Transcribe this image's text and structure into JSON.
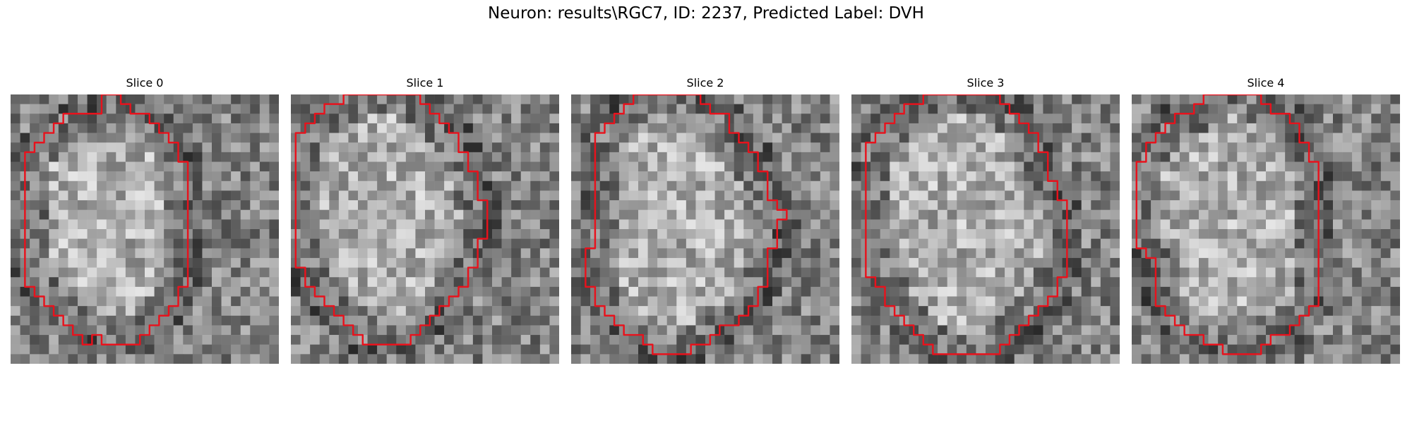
{
  "figure": {
    "title": "Neuron: results\\RGC7, ID: 2237, Predicted Label: DVH",
    "contour_color": "#e8121c",
    "colormap": "gray"
  },
  "panels": [
    {
      "title": "Slice 0",
      "seed": 11,
      "contour": [
        [
          9,
          0
        ],
        [
          11,
          0
        ],
        [
          11,
          1
        ],
        [
          12,
          1
        ],
        [
          12,
          2
        ],
        [
          14,
          2
        ],
        [
          14,
          3
        ],
        [
          15,
          3
        ],
        [
          15,
          4
        ],
        [
          16,
          4
        ],
        [
          16,
          5
        ],
        [
          17,
          5
        ],
        [
          17,
          7
        ],
        [
          18,
          7
        ],
        [
          18,
          20
        ],
        [
          17,
          20
        ],
        [
          17,
          22
        ],
        [
          16,
          22
        ],
        [
          16,
          23
        ],
        [
          15,
          23
        ],
        [
          15,
          24
        ],
        [
          14,
          24
        ],
        [
          14,
          25
        ],
        [
          13,
          25
        ],
        [
          13,
          26
        ],
        [
          9,
          26
        ],
        [
          9,
          25
        ],
        [
          8,
          25
        ],
        [
          8,
          26
        ],
        [
          7,
          26
        ],
        [
          7,
          25
        ],
        [
          6,
          25
        ],
        [
          6,
          24
        ],
        [
          5,
          24
        ],
        [
          5,
          23
        ],
        [
          4,
          23
        ],
        [
          4,
          22
        ],
        [
          3,
          22
        ],
        [
          3,
          21
        ],
        [
          2,
          21
        ],
        [
          2,
          20
        ],
        [
          1,
          20
        ],
        [
          1,
          6
        ],
        [
          2,
          6
        ],
        [
          2,
          5
        ],
        [
          3,
          5
        ],
        [
          3,
          4
        ],
        [
          4,
          4
        ],
        [
          4,
          3
        ],
        [
          5,
          3
        ],
        [
          5,
          2
        ],
        [
          9,
          2
        ]
      ]
    },
    {
      "title": "Slice 1",
      "seed": 23,
      "contour": [
        [
          7,
          0
        ],
        [
          13,
          0
        ],
        [
          13,
          1
        ],
        [
          14,
          1
        ],
        [
          14,
          2
        ],
        [
          15,
          2
        ],
        [
          15,
          3
        ],
        [
          16,
          3
        ],
        [
          16,
          4
        ],
        [
          17,
          4
        ],
        [
          17,
          6
        ],
        [
          18,
          6
        ],
        [
          18,
          8
        ],
        [
          19,
          8
        ],
        [
          19,
          11
        ],
        [
          20,
          11
        ],
        [
          20,
          15
        ],
        [
          19,
          15
        ],
        [
          19,
          18
        ],
        [
          18,
          18
        ],
        [
          18,
          20
        ],
        [
          17,
          20
        ],
        [
          17,
          21
        ],
        [
          16,
          21
        ],
        [
          16,
          22
        ],
        [
          15,
          22
        ],
        [
          15,
          23
        ],
        [
          14,
          23
        ],
        [
          14,
          24
        ],
        [
          13,
          24
        ],
        [
          13,
          25
        ],
        [
          12,
          25
        ],
        [
          12,
          26
        ],
        [
          7,
          26
        ],
        [
          7,
          25
        ],
        [
          6,
          25
        ],
        [
          6,
          24
        ],
        [
          5,
          24
        ],
        [
          5,
          23
        ],
        [
          4,
          23
        ],
        [
          4,
          22
        ],
        [
          3,
          22
        ],
        [
          3,
          21
        ],
        [
          2,
          21
        ],
        [
          2,
          20
        ],
        [
          1,
          20
        ],
        [
          1,
          18
        ],
        [
          0,
          18
        ],
        [
          0,
          4
        ],
        [
          1,
          4
        ],
        [
          1,
          3
        ],
        [
          2,
          3
        ],
        [
          2,
          2
        ],
        [
          3,
          2
        ],
        [
          3,
          1
        ],
        [
          5,
          1
        ],
        [
          5,
          0
        ]
      ]
    },
    {
      "title": "Slice 2",
      "seed": 37,
      "contour": [
        [
          6,
          0
        ],
        [
          13,
          0
        ],
        [
          13,
          1
        ],
        [
          14,
          1
        ],
        [
          14,
          2
        ],
        [
          16,
          2
        ],
        [
          16,
          4
        ],
        [
          17,
          4
        ],
        [
          17,
          5
        ],
        [
          18,
          5
        ],
        [
          18,
          6
        ],
        [
          19,
          6
        ],
        [
          19,
          8
        ],
        [
          20,
          8
        ],
        [
          20,
          11
        ],
        [
          21,
          11
        ],
        [
          21,
          12
        ],
        [
          22,
          12
        ],
        [
          22,
          13
        ],
        [
          21,
          13
        ],
        [
          21,
          16
        ],
        [
          20,
          16
        ],
        [
          20,
          20
        ],
        [
          19,
          20
        ],
        [
          19,
          22
        ],
        [
          18,
          22
        ],
        [
          18,
          23
        ],
        [
          17,
          23
        ],
        [
          17,
          24
        ],
        [
          15,
          24
        ],
        [
          15,
          25
        ],
        [
          14,
          25
        ],
        [
          14,
          26
        ],
        [
          12,
          26
        ],
        [
          12,
          27
        ],
        [
          8,
          27
        ],
        [
          8,
          26
        ],
        [
          7,
          26
        ],
        [
          7,
          25
        ],
        [
          5,
          25
        ],
        [
          5,
          24
        ],
        [
          4,
          24
        ],
        [
          4,
          23
        ],
        [
          3,
          23
        ],
        [
          3,
          22
        ],
        [
          2,
          22
        ],
        [
          2,
          20
        ],
        [
          1,
          20
        ],
        [
          1,
          16
        ],
        [
          2,
          16
        ],
        [
          2,
          4
        ],
        [
          3,
          4
        ],
        [
          3,
          3
        ],
        [
          4,
          3
        ],
        [
          4,
          2
        ],
        [
          5,
          2
        ],
        [
          5,
          1
        ],
        [
          6,
          1
        ]
      ]
    },
    {
      "title": "Slice 3",
      "seed": 53,
      "contour": [
        [
          7,
          0
        ],
        [
          15,
          0
        ],
        [
          15,
          1
        ],
        [
          16,
          1
        ],
        [
          16,
          2
        ],
        [
          17,
          2
        ],
        [
          17,
          3
        ],
        [
          18,
          3
        ],
        [
          18,
          4
        ],
        [
          19,
          4
        ],
        [
          19,
          6
        ],
        [
          20,
          6
        ],
        [
          20,
          9
        ],
        [
          21,
          9
        ],
        [
          21,
          11
        ],
        [
          22,
          11
        ],
        [
          22,
          19
        ],
        [
          21,
          19
        ],
        [
          21,
          21
        ],
        [
          20,
          21
        ],
        [
          20,
          22
        ],
        [
          19,
          22
        ],
        [
          19,
          23
        ],
        [
          18,
          23
        ],
        [
          18,
          24
        ],
        [
          17,
          24
        ],
        [
          17,
          25
        ],
        [
          16,
          25
        ],
        [
          16,
          26
        ],
        [
          15,
          26
        ],
        [
          15,
          27
        ],
        [
          8,
          27
        ],
        [
          8,
          26
        ],
        [
          7,
          26
        ],
        [
          7,
          25
        ],
        [
          6,
          25
        ],
        [
          6,
          24
        ],
        [
          5,
          24
        ],
        [
          5,
          23
        ],
        [
          4,
          23
        ],
        [
          4,
          22
        ],
        [
          3,
          22
        ],
        [
          3,
          20
        ],
        [
          2,
          20
        ],
        [
          2,
          19
        ],
        [
          1,
          19
        ],
        [
          1,
          5
        ],
        [
          2,
          5
        ],
        [
          2,
          4
        ],
        [
          3,
          4
        ],
        [
          3,
          3
        ],
        [
          4,
          3
        ],
        [
          4,
          2
        ],
        [
          5,
          2
        ],
        [
          5,
          1
        ],
        [
          7,
          1
        ]
      ]
    },
    {
      "title": "Slice 4",
      "seed": 71,
      "contour": [
        [
          7,
          0
        ],
        [
          13,
          0
        ],
        [
          13,
          1
        ],
        [
          14,
          1
        ],
        [
          14,
          2
        ],
        [
          16,
          2
        ],
        [
          16,
          3
        ],
        [
          17,
          3
        ],
        [
          17,
          5
        ],
        [
          18,
          5
        ],
        [
          18,
          7
        ],
        [
          19,
          7
        ],
        [
          19,
          22
        ],
        [
          18,
          22
        ],
        [
          18,
          23
        ],
        [
          17,
          23
        ],
        [
          17,
          24
        ],
        [
          16,
          24
        ],
        [
          16,
          25
        ],
        [
          14,
          25
        ],
        [
          14,
          26
        ],
        [
          13,
          26
        ],
        [
          13,
          27
        ],
        [
          9,
          27
        ],
        [
          9,
          26
        ],
        [
          7,
          26
        ],
        [
          7,
          25
        ],
        [
          5,
          25
        ],
        [
          5,
          24
        ],
        [
          4,
          24
        ],
        [
          4,
          23
        ],
        [
          3,
          23
        ],
        [
          3,
          22
        ],
        [
          2,
          22
        ],
        [
          2,
          17
        ],
        [
          1,
          17
        ],
        [
          1,
          16
        ],
        [
          0,
          16
        ],
        [
          0,
          7
        ],
        [
          1,
          7
        ],
        [
          1,
          5
        ],
        [
          2,
          5
        ],
        [
          2,
          4
        ],
        [
          3,
          4
        ],
        [
          3,
          3
        ],
        [
          4,
          3
        ],
        [
          4,
          2
        ],
        [
          6,
          2
        ],
        [
          6,
          1
        ],
        [
          7,
          1
        ]
      ]
    }
  ]
}
